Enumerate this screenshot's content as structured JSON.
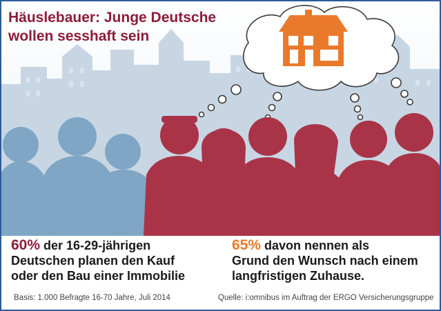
{
  "title_line1": "Häuslebauer: Junge Deutsche",
  "title_line2": "wollen sesshaft sein",
  "stat_left": {
    "percent": "60%",
    "line1_rest": " der 16-29-jährigen",
    "line2": "Deutschen planen den Kauf",
    "line3": "oder den Bau einer Immobilie"
  },
  "stat_right": {
    "percent": "65%",
    "line1_rest": " davon nennen als",
    "line2": "Grund den Wunsch nach einem",
    "line3": "langfristigen Zuhause."
  },
  "footnote_left": "Basis: 1.000 Befragte 16-70 Jahre, Juli 2014",
  "footnote_right": "Quelle: i:omnibus im Auftrag der ERGO Versicherungsgruppe",
  "colors": {
    "brand_red": "#8c1d3a",
    "accent_orange": "#ea7a2b",
    "silhouette_blue": "#7fa6c4",
    "silhouette_red": "#a93448",
    "border_blue": "#2c5a9a"
  },
  "icons": [
    "house-icon",
    "thought-bubble-icon"
  ]
}
